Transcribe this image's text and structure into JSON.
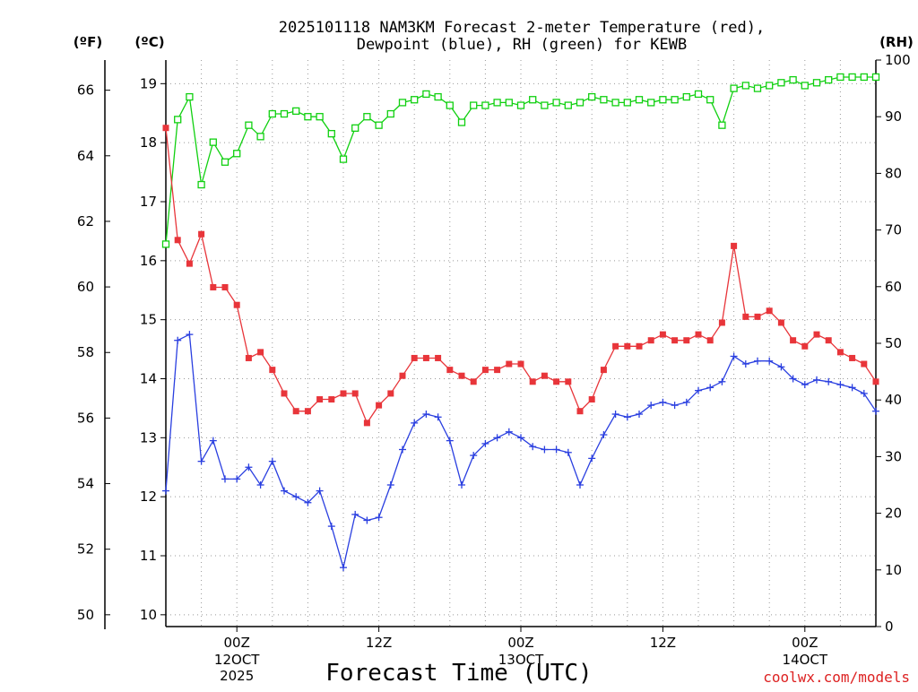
{
  "colors": {
    "temperature": "#e8353a",
    "dewpoint": "#2a3fe0",
    "rh": "#10d010",
    "grid": "#999999",
    "credit": "#dd2222"
  },
  "chart_data": {
    "type": "line",
    "title_line1": "2025101118 NAM3KM Forecast 2-meter Temperature (red),",
    "title_line2": "Dewpoint (blue), RH (green) for KEWB",
    "xlabel": "Forecast Time (UTC)",
    "credit": "coolwx.com/models",
    "unit_f": "(ºF)",
    "unit_c": "(ºC)",
    "unit_rh": "(RH)",
    "x_range_hours": [
      0,
      60
    ],
    "c_range": [
      9.8,
      19.4
    ],
    "rh_range": [
      0,
      100
    ],
    "c_ticks": [
      "10",
      "11",
      "12",
      "13",
      "14",
      "15",
      "16",
      "17",
      "18",
      "19"
    ],
    "f_ticks": [
      "50",
      "52",
      "54",
      "56",
      "58",
      "60",
      "62",
      "64",
      "66"
    ],
    "rh_ticks": [
      "0",
      "10",
      "20",
      "30",
      "40",
      "50",
      "60",
      "70",
      "80",
      "90",
      "100"
    ],
    "x_ticks": [
      {
        "hour": 6,
        "line1": "00Z",
        "line2": "12OCT",
        "line3": "2025"
      },
      {
        "hour": 18,
        "line1": "12Z",
        "line2": "",
        "line3": ""
      },
      {
        "hour": 30,
        "line1": "00Z",
        "line2": "13OCT",
        "line3": ""
      },
      {
        "hour": 42,
        "line1": "12Z",
        "line2": "",
        "line3": ""
      },
      {
        "hour": 54,
        "line1": "00Z",
        "line2": "14OCT",
        "line3": ""
      }
    ],
    "series": [
      {
        "name": "Temperature (ºC)",
        "values": [
          18.25,
          16.35,
          15.95,
          16.45,
          15.55,
          15.55,
          15.25,
          14.35,
          14.45,
          14.15,
          13.75,
          13.45,
          13.45,
          13.65,
          13.65,
          13.75,
          13.75,
          13.25,
          13.55,
          13.75,
          14.05,
          14.35,
          14.35,
          14.35,
          14.15,
          14.05,
          13.95,
          14.15,
          14.15,
          14.25,
          14.25,
          13.95,
          14.05,
          13.95,
          13.95,
          13.45,
          13.65,
          14.15,
          14.55,
          14.55,
          14.55,
          14.65,
          14.75,
          14.65,
          14.65,
          14.75,
          14.65,
          14.95,
          16.25,
          15.05,
          15.05,
          15.15,
          14.95,
          14.65,
          14.55,
          14.75,
          14.65,
          14.45,
          14.35,
          14.25,
          13.95
        ]
      },
      {
        "name": "Dewpoint (ºC)",
        "values": [
          12.1,
          14.65,
          14.75,
          12.6,
          12.95,
          12.3,
          12.3,
          12.5,
          12.2,
          12.6,
          12.1,
          12.0,
          11.9,
          12.1,
          11.5,
          10.8,
          11.7,
          11.6,
          11.65,
          12.2,
          12.8,
          13.25,
          13.4,
          13.35,
          12.95,
          12.2,
          12.7,
          12.9,
          13.0,
          13.1,
          13.0,
          12.85,
          12.8,
          12.8,
          12.75,
          12.2,
          12.65,
          13.05,
          13.4,
          13.35,
          13.4,
          13.55,
          13.6,
          13.55,
          13.6,
          13.8,
          13.85,
          13.95,
          14.38,
          14.25,
          14.3,
          14.3,
          14.2,
          14.0,
          13.9,
          13.98,
          13.95,
          13.9,
          13.85,
          13.75,
          13.45
        ]
      },
      {
        "name": "RH (%)",
        "values": [
          67.5,
          89.5,
          93.5,
          78.0,
          85.5,
          82.0,
          83.5,
          88.5,
          86.5,
          90.5,
          90.5,
          91.0,
          90.0,
          90.0,
          87.0,
          82.5,
          88.0,
          90.0,
          88.5,
          90.5,
          92.5,
          93.0,
          94.0,
          93.5,
          92.0,
          89.0,
          92.0,
          92.0,
          92.5,
          92.5,
          92.0,
          93.0,
          92.0,
          92.5,
          92.0,
          92.5,
          93.5,
          93.0,
          92.5,
          92.5,
          93.0,
          92.5,
          93.0,
          93.0,
          93.5,
          94.0,
          93.0,
          88.5,
          95.0,
          95.5,
          95.0,
          95.5,
          96.0,
          96.5,
          95.5,
          96.0,
          96.5,
          97.0,
          97.0,
          97.0,
          97.0
        ]
      }
    ]
  }
}
